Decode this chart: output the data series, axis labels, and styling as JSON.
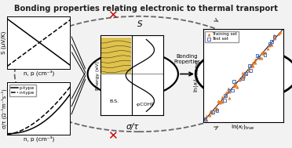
{
  "title": "Bonding properties relating electronic to thermal transport",
  "title_fontsize": 7.2,
  "bg_color": "#f0f0f0",
  "left_top_xlabel": "n, p (cm⁻³)",
  "left_top_ylabel": "S (μV/K)",
  "left_bot_xlabel": "n, p (cm⁻³)",
  "left_bot_ylabel": "σ/τ (Ω⁻¹m⁻¹s⁻¹)",
  "s_label": "S",
  "sigma_label": "σ/τ",
  "bonding_label": "Bonding\nProperties",
  "ptype_label": "p-type",
  "ntype_label": "n-type",
  "bs_label": "B.S.",
  "pcohp_label": "-pCOHP",
  "energy_label": "Energy (eV)",
  "training_label": "Training set",
  "test_label": "Test set",
  "orange": "#E87722",
  "blue": "#4472C4",
  "red": "#CC0000",
  "dark": "#222222",
  "gray_dash": "#666666",
  "cohp_yellow": "#D4A800"
}
